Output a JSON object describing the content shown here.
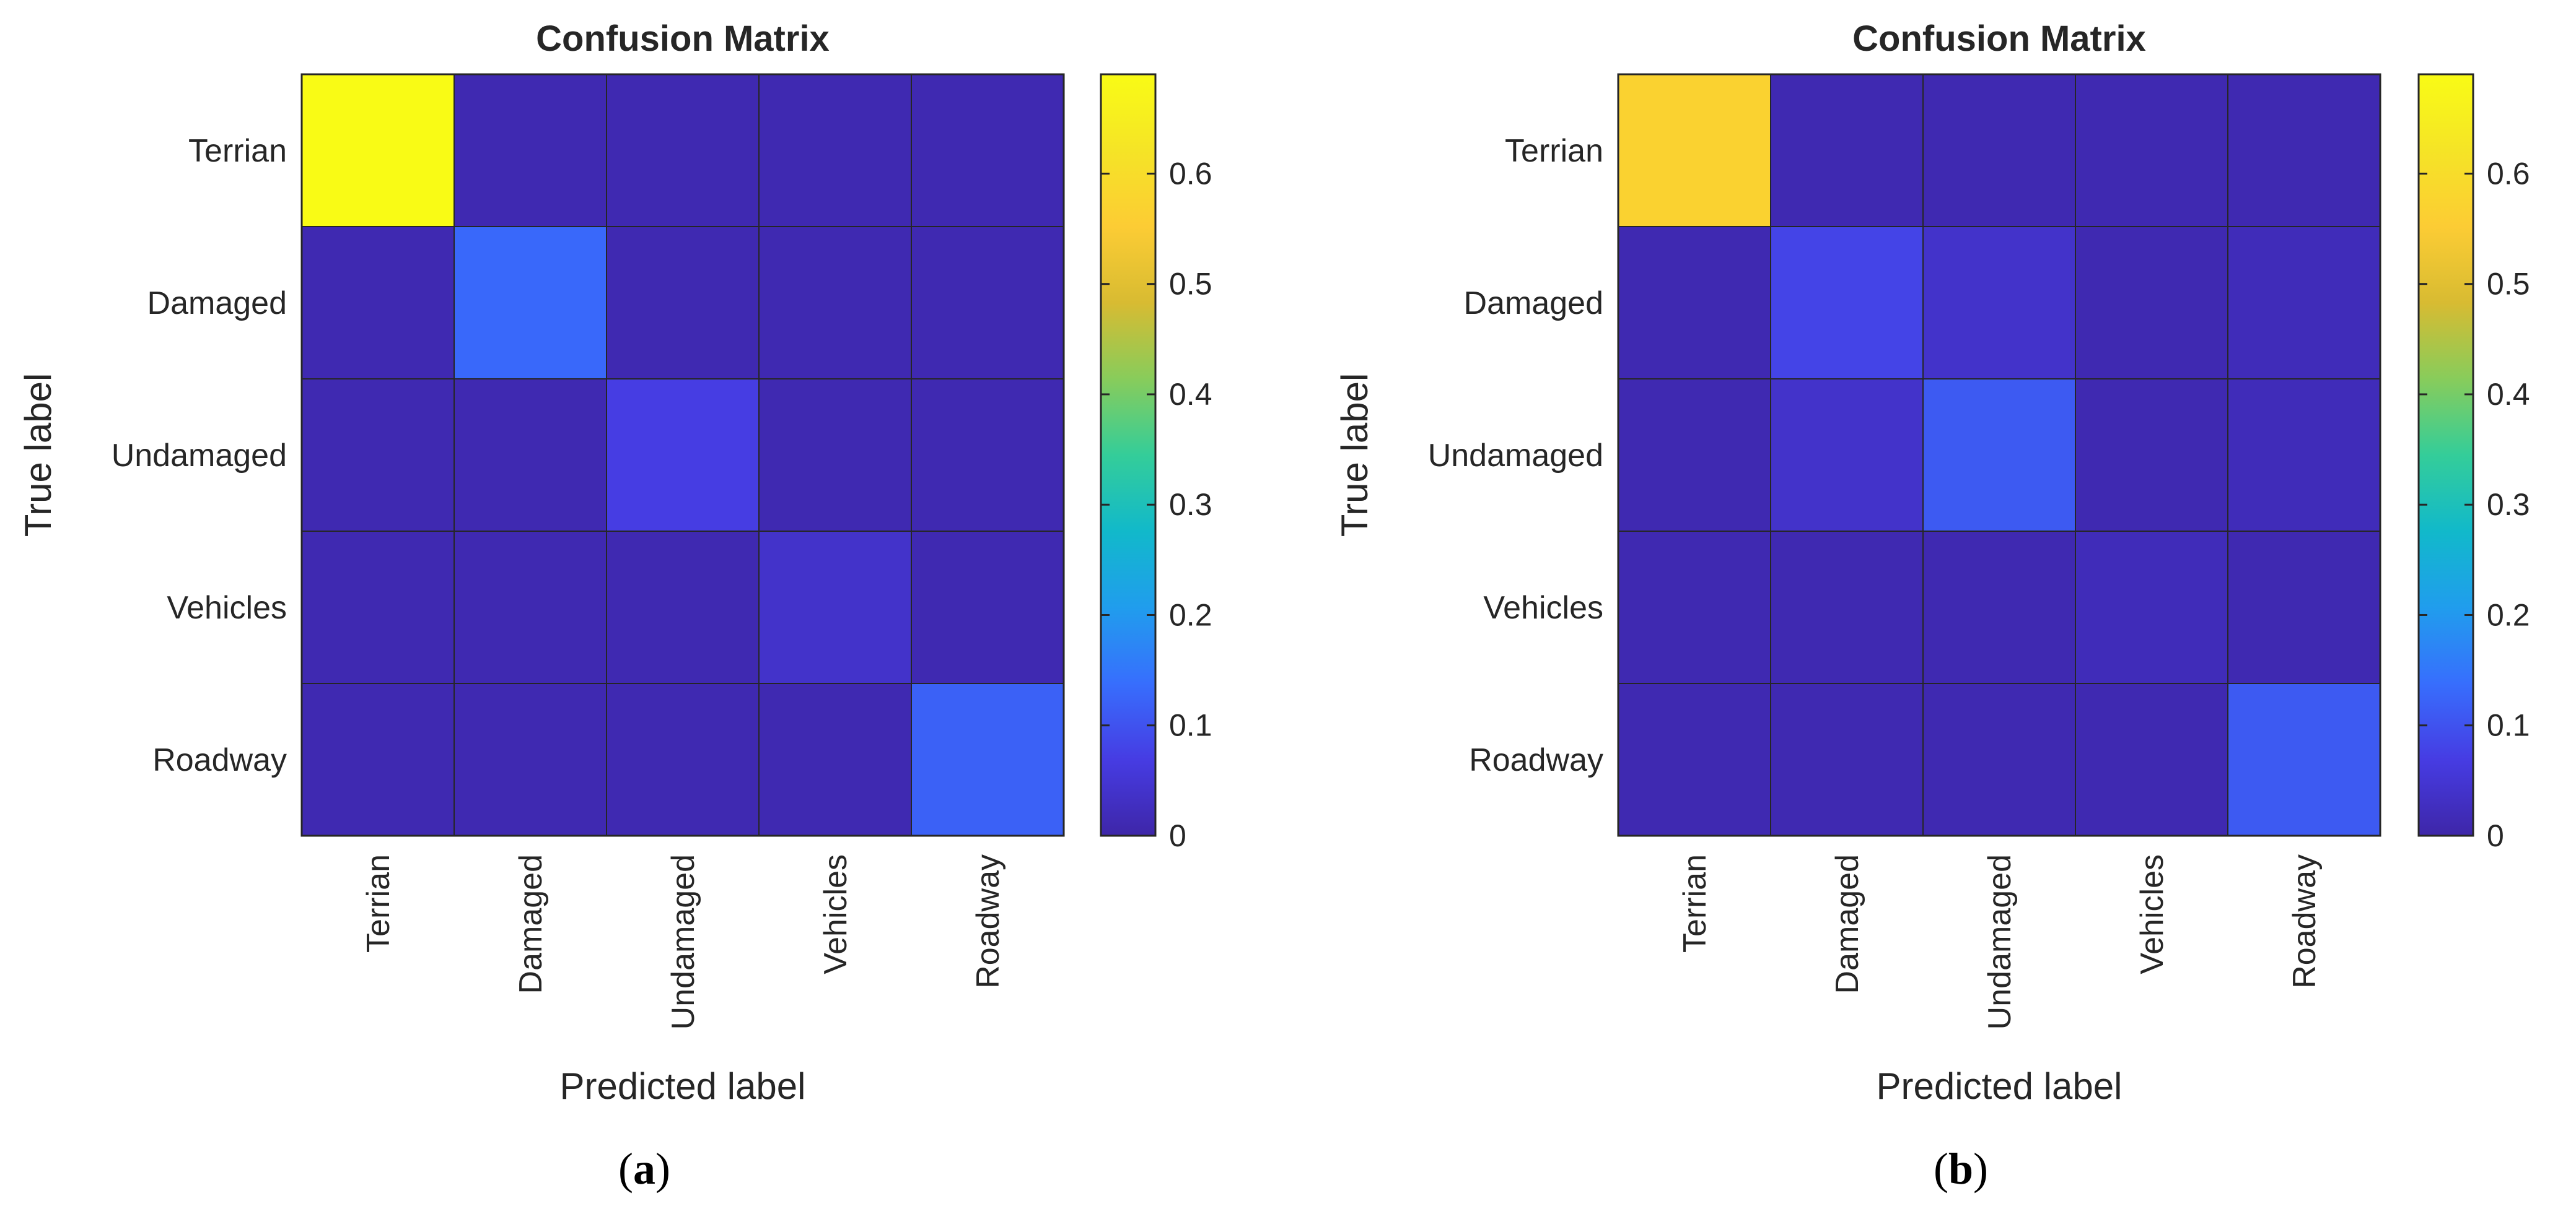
{
  "chart_data": [
    {
      "type": "heatmap",
      "title": "Confusion Matrix",
      "xlabel": "Predicted label",
      "ylabel": "True label",
      "categories": [
        "Terrian",
        "Damaged",
        "Undamaged",
        "Vehicles",
        "Roadway"
      ],
      "matrix": [
        [
          0.69,
          0.01,
          0.01,
          0.01,
          0.01
        ],
        [
          0.01,
          0.13,
          0.01,
          0.01,
          0.01
        ],
        [
          0.01,
          0.01,
          0.07,
          0.01,
          0.01
        ],
        [
          0.01,
          0.01,
          0.01,
          0.04,
          0.01
        ],
        [
          0.01,
          0.01,
          0.01,
          0.01,
          0.12
        ]
      ],
      "colorbar": {
        "min": 0,
        "max": 0.69,
        "ticks": [
          0,
          0.1,
          0.2,
          0.3,
          0.4,
          0.5,
          0.6
        ],
        "tick_labels": [
          "0",
          "0.1",
          "0.2",
          "0.3",
          "0.4",
          "0.5",
          "0.6"
        ]
      },
      "colormap": "parula",
      "caption": {
        "open": "(",
        "letter": "a",
        "close": ")"
      }
    },
    {
      "type": "heatmap",
      "title": "Confusion Matrix",
      "xlabel": "Predicted label",
      "ylabel": "True label",
      "categories": [
        "Terrian",
        "Damaged",
        "Undamaged",
        "Vehicles",
        "Roadway"
      ],
      "matrix": [
        [
          0.57,
          0.01,
          0.01,
          0.01,
          0.01
        ],
        [
          0.01,
          0.08,
          0.04,
          0.01,
          0.02
        ],
        [
          0.01,
          0.04,
          0.11,
          0.01,
          0.02
        ],
        [
          0.01,
          0.01,
          0.01,
          0.02,
          0.01
        ],
        [
          0.01,
          0.01,
          0.01,
          0.01,
          0.11
        ]
      ],
      "colorbar": {
        "min": 0,
        "max": 0.69,
        "ticks": [
          0,
          0.1,
          0.2,
          0.3,
          0.4,
          0.5,
          0.6
        ],
        "tick_labels": [
          "0",
          "0.1",
          "0.2",
          "0.3",
          "0.4",
          "0.5",
          "0.6"
        ]
      },
      "colormap": "parula",
      "caption": {
        "open": "(",
        "letter": "b",
        "close": ")"
      }
    }
  ]
}
